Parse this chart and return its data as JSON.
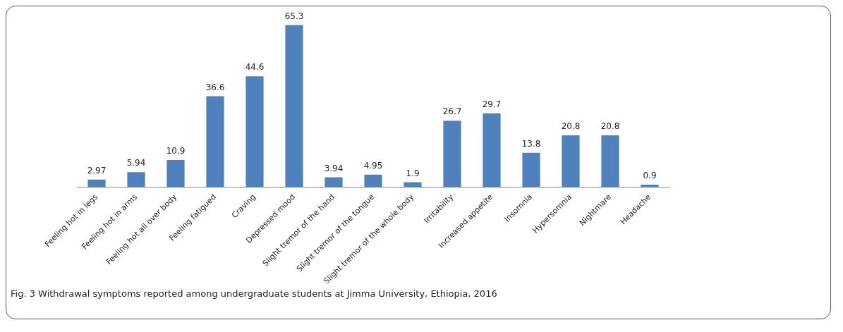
{
  "chart_data": {
    "type": "bar",
    "categories": [
      "Feeling hot in legs",
      "Feeling hot in arms",
      "Feeling hot all over body",
      "Feeling fatigued",
      "Craving",
      "Depressed mood",
      "Slight tremor of the hand",
      "Slight tremor of the tongue",
      "Slight tremor of the whole body",
      "Irritability",
      "Increased appetite",
      "Insomnia",
      "Hypersomnia",
      "Nightmare",
      "Headache"
    ],
    "values": [
      2.97,
      5.94,
      10.9,
      36.6,
      44.6,
      65.3,
      3.94,
      4.95,
      1.9,
      26.7,
      29.7,
      13.8,
      20.8,
      20.8,
      0.9
    ],
    "color": "#4f81bd",
    "data_labels": true,
    "grid": false,
    "legend": false,
    "annotations": [
      "Fig. 3 Withdrawal symptoms reported among undergraduate students at Jimma University, Ethiopia, 2016"
    ]
  }
}
